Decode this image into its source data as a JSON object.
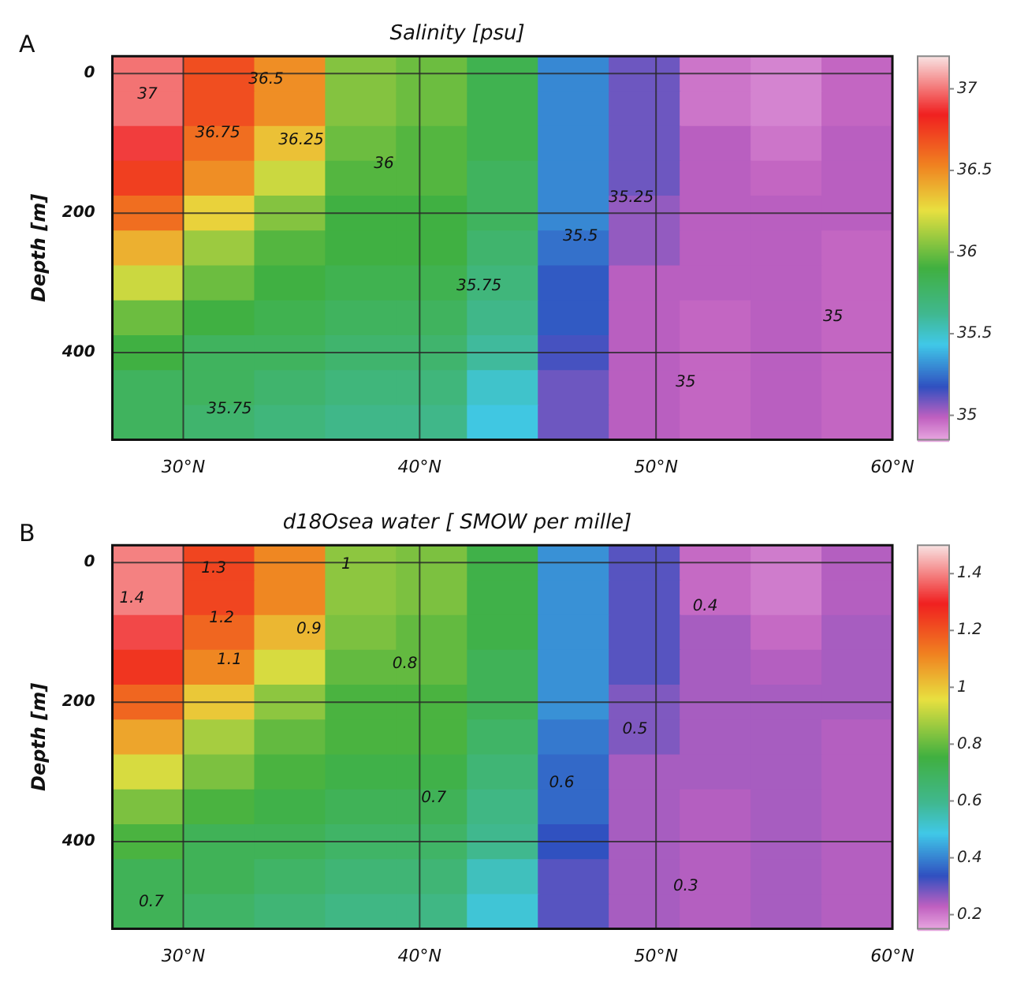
{
  "chart_data": [
    {
      "type": "heatmap",
      "title": "Salinity [psu]",
      "ylabel": "Depth [m]",
      "annotations": [
        "A",
        "37",
        "36.75",
        "36.5",
        "36.25",
        "36",
        "35.75",
        "35.75",
        "35.5",
        "35.25",
        "35",
        "35"
      ],
      "x": [
        28.5,
        31.5,
        34.5,
        37.5,
        40.5,
        43.5,
        46.5,
        49.5,
        52.5,
        55.5,
        58.5
      ],
      "y_categories": [
        "0",
        null,
        null,
        null,
        "200",
        null,
        null,
        null,
        "400",
        null,
        null
      ],
      "xlim": [
        27,
        60
      ],
      "xticks": [
        {
          "value": 30,
          "label": "30°N"
        },
        {
          "value": 40,
          "label": "40°N"
        },
        {
          "value": 50,
          "label": "50°N"
        },
        {
          "value": 60,
          "label": "60°N"
        }
      ],
      "grid": true,
      "clim": [
        34.85,
        37.2
      ],
      "cticks": [
        35,
        35.5,
        36,
        36.5,
        37
      ],
      "cells": [
        [
          37.0,
          36.7,
          36.5,
          36.05,
          36.0,
          35.85,
          35.3,
          35.1,
          34.95,
          34.92,
          34.98
        ],
        [
          37.0,
          36.7,
          36.5,
          36.05,
          36.0,
          35.85,
          35.3,
          35.1,
          34.95,
          34.92,
          34.98
        ],
        [
          36.9,
          36.6,
          36.35,
          36.0,
          35.95,
          35.85,
          35.3,
          35.1,
          35.0,
          34.95,
          35.0
        ],
        [
          36.75,
          36.5,
          36.2,
          35.95,
          35.95,
          35.8,
          35.3,
          35.1,
          35.0,
          34.98,
          35.0
        ],
        [
          36.6,
          36.3,
          36.05,
          35.9,
          35.9,
          35.8,
          35.3,
          35.05,
          35.0,
          35.0,
          35.0
        ],
        [
          36.4,
          36.1,
          35.95,
          35.9,
          35.9,
          35.75,
          35.25,
          35.05,
          35.0,
          35.0,
          34.98
        ],
        [
          36.2,
          36.0,
          35.9,
          35.85,
          35.85,
          35.7,
          35.2,
          35.0,
          35.0,
          35.0,
          34.98
        ],
        [
          36.0,
          35.9,
          35.85,
          35.8,
          35.8,
          35.65,
          35.2,
          35.0,
          34.98,
          35.0,
          34.98
        ],
        [
          35.9,
          35.8,
          35.8,
          35.75,
          35.75,
          35.6,
          35.15,
          35.0,
          34.98,
          35.0,
          34.98
        ],
        [
          35.8,
          35.8,
          35.75,
          35.7,
          35.7,
          35.5,
          35.1,
          35.0,
          34.98,
          35.0,
          34.98
        ],
        [
          35.8,
          35.75,
          35.7,
          35.65,
          35.65,
          35.45,
          35.1,
          35.0,
          34.98,
          35.0,
          34.98
        ]
      ]
    },
    {
      "type": "heatmap",
      "title": "d18Osea water [ SMOW per mille]",
      "ylabel": "Depth [m]",
      "annotations": [
        "B",
        "1.4",
        "1.3",
        "1.2",
        "1.1",
        "1",
        "0.9",
        "0.8",
        "0.7",
        "0.7",
        "0.6",
        "0.5",
        "0.4",
        "0.3"
      ],
      "x": [
        28.5,
        31.5,
        34.5,
        37.5,
        40.5,
        43.5,
        46.5,
        49.5,
        52.5,
        55.5,
        58.5
      ],
      "y_categories": [
        "0",
        null,
        null,
        null,
        "200",
        null,
        null,
        null,
        "400",
        null,
        null
      ],
      "xlim": [
        27,
        60
      ],
      "xticks": [
        {
          "value": 30,
          "label": "30°N"
        },
        {
          "value": 40,
          "label": "40°N"
        },
        {
          "value": 50,
          "label": "50°N"
        },
        {
          "value": 60,
          "label": "60°N"
        }
      ],
      "grid": true,
      "clim": [
        0.15,
        1.5
      ],
      "cticks": [
        0.2,
        0.4,
        0.6,
        0.8,
        1,
        1.2,
        1.4
      ],
      "cells": [
        [
          1.4,
          1.23,
          1.11,
          0.85,
          0.83,
          0.74,
          0.42,
          0.31,
          0.22,
          0.2,
          0.24
        ],
        [
          1.4,
          1.23,
          1.11,
          0.85,
          0.83,
          0.74,
          0.42,
          0.31,
          0.22,
          0.2,
          0.24
        ],
        [
          1.34,
          1.17,
          1.03,
          0.83,
          0.8,
          0.74,
          0.42,
          0.31,
          0.25,
          0.22,
          0.25
        ],
        [
          1.26,
          1.11,
          0.94,
          0.8,
          0.8,
          0.71,
          0.42,
          0.31,
          0.25,
          0.24,
          0.25
        ],
        [
          1.17,
          1.0,
          0.85,
          0.77,
          0.77,
          0.71,
          0.42,
          0.28,
          0.25,
          0.25,
          0.25
        ],
        [
          1.06,
          0.88,
          0.8,
          0.77,
          0.77,
          0.68,
          0.39,
          0.28,
          0.25,
          0.25,
          0.24
        ],
        [
          0.94,
          0.83,
          0.77,
          0.74,
          0.74,
          0.65,
          0.37,
          0.25,
          0.25,
          0.25,
          0.24
        ],
        [
          0.83,
          0.77,
          0.74,
          0.71,
          0.71,
          0.62,
          0.37,
          0.25,
          0.24,
          0.25,
          0.24
        ],
        [
          0.77,
          0.71,
          0.71,
          0.68,
          0.68,
          0.6,
          0.34,
          0.25,
          0.24,
          0.25,
          0.24
        ],
        [
          0.71,
          0.71,
          0.68,
          0.65,
          0.65,
          0.54,
          0.31,
          0.25,
          0.24,
          0.25,
          0.24
        ],
        [
          0.71,
          0.68,
          0.65,
          0.62,
          0.62,
          0.51,
          0.31,
          0.25,
          0.24,
          0.25,
          0.24
        ]
      ]
    }
  ]
}
